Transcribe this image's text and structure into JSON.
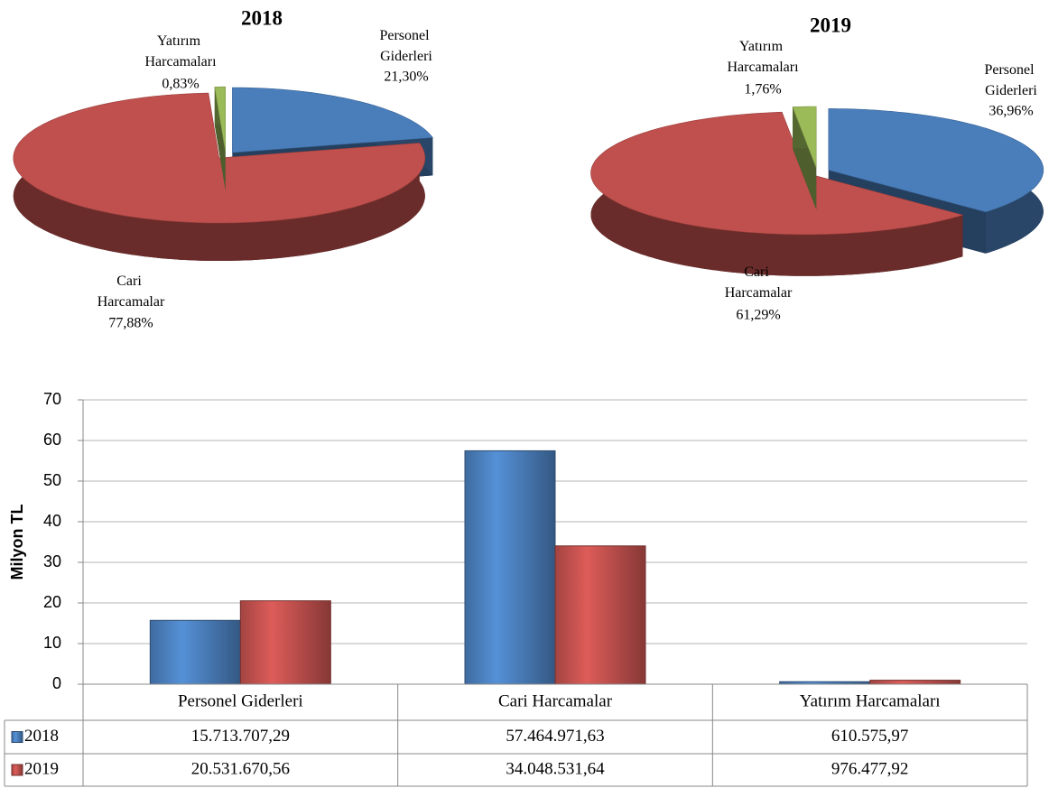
{
  "chart_data": [
    {
      "type": "pie",
      "title": "2018",
      "categories": [
        "Personel Giderleri",
        "Cari Harcamalar",
        "Yatırım Harcamaları"
      ],
      "values": [
        21.3,
        77.88,
        0.83
      ],
      "value_labels": [
        "21,30%",
        "77,88%",
        "0,83%"
      ],
      "colors": [
        "#4a7ebb",
        "#c0504d",
        "#9bbb59"
      ]
    },
    {
      "type": "pie",
      "title": "2019",
      "categories": [
        "Personel Giderleri",
        "Cari Harcamalar",
        "Yatırım Harcamaları"
      ],
      "values": [
        36.96,
        61.29,
        1.76
      ],
      "value_labels": [
        "36,96%",
        "61,29%",
        "1,76%"
      ],
      "colors": [
        "#4a7ebb",
        "#c0504d",
        "#9bbb59"
      ]
    },
    {
      "type": "bar",
      "ylabel": "Milyon TL",
      "categories": [
        "Personel Giderleri",
        "Cari Harcamalar",
        "Yatırım Harcamaları"
      ],
      "series": [
        {
          "name": "2018",
          "color": "#4a7ebb",
          "values": [
            15.71370729,
            57.46497163,
            0.61057597
          ],
          "value_labels": [
            "15.713.707,29",
            "57.464.971,63",
            "610.575,97"
          ]
        },
        {
          "name": "2019",
          "color": "#c0504d",
          "values": [
            20.53167056,
            34.04853164,
            0.97647792
          ],
          "value_labels": [
            "20.531.670,56",
            "34.048.531,64",
            "976.477,92"
          ]
        }
      ],
      "ylim": [
        0,
        70
      ],
      "yticks": [
        0,
        10,
        20,
        30,
        40,
        50,
        60,
        70
      ],
      "grid": true
    }
  ]
}
